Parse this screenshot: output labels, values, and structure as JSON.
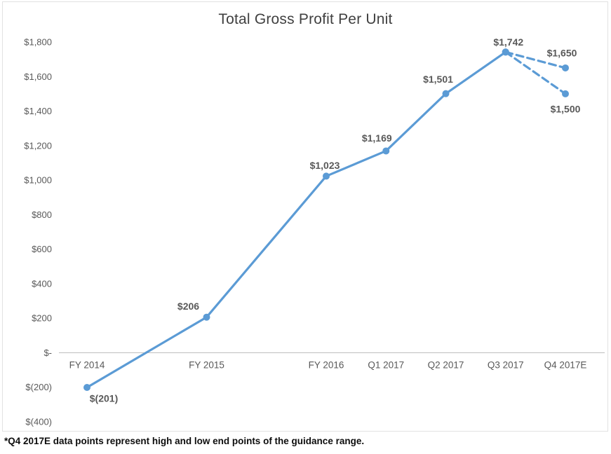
{
  "chart_data": {
    "type": "line",
    "title": "Total Gross Profit Per Unit",
    "categories": [
      "FY 2014",
      "FY 2015",
      "FY 2016",
      "Q1 2017",
      "Q2 2017",
      "Q3 2017",
      "Q4 2017E"
    ],
    "category_x_units": [
      0,
      2,
      4,
      5,
      6,
      7,
      8
    ],
    "ylim": [
      -400,
      1800
    ],
    "y_ticks": [
      {
        "value": 1800,
        "label": "$1,800"
      },
      {
        "value": 1600,
        "label": "$1,600"
      },
      {
        "value": 1400,
        "label": "$1,400"
      },
      {
        "value": 1200,
        "label": "$1,200"
      },
      {
        "value": 1000,
        "label": "$1,000"
      },
      {
        "value": 800,
        "label": "$800"
      },
      {
        "value": 600,
        "label": "$600"
      },
      {
        "value": 400,
        "label": "$400"
      },
      {
        "value": 200,
        "label": "$200"
      },
      {
        "value": 0,
        "label": "$-"
      },
      {
        "value": -200,
        "label": "$(200)"
      },
      {
        "value": -400,
        "label": "$(400)"
      }
    ],
    "series": [
      {
        "name": "actual",
        "line_style": "solid",
        "points": [
          {
            "x_unit": 0,
            "category": "FY 2014",
            "value": -201,
            "label": "$(201)",
            "label_dx": 24,
            "label_dy": 16
          },
          {
            "x_unit": 2,
            "category": "FY 2015",
            "value": 206,
            "label": "$206",
            "label_dx": -26,
            "label_dy": -15
          },
          {
            "x_unit": 4,
            "category": "FY 2016",
            "value": 1023,
            "label": "$1,023",
            "label_dx": -2,
            "label_dy": -15
          },
          {
            "x_unit": 5,
            "category": "Q1 2017",
            "value": 1169,
            "label": "$1,169",
            "label_dx": -13,
            "label_dy": -18
          },
          {
            "x_unit": 6,
            "category": "Q2 2017",
            "value": 1501,
            "label": "$1,501",
            "label_dx": -11,
            "label_dy": -20
          },
          {
            "x_unit": 7,
            "category": "Q3 2017",
            "value": 1742,
            "label": "$1,742",
            "label_dx": 4,
            "label_dy": -14
          }
        ]
      },
      {
        "name": "guidance-high",
        "line_style": "dashed",
        "points": [
          {
            "x_unit": 7,
            "category": "Q3 2017",
            "value": 1742,
            "label": null
          },
          {
            "x_unit": 8,
            "category": "Q4 2017E",
            "value": 1650,
            "label": "$1,650",
            "label_dx": -5,
            "label_dy": -21
          }
        ]
      },
      {
        "name": "guidance-low",
        "line_style": "dashed",
        "points": [
          {
            "x_unit": 7,
            "category": "Q3 2017",
            "value": 1742,
            "label": null
          },
          {
            "x_unit": 8,
            "category": "Q4 2017E",
            "value": 1500,
            "label": "$1,500",
            "label_dx": 0,
            "label_dy": 22
          }
        ]
      }
    ],
    "colors": {
      "line": "#5B9BD5",
      "data_label": "#595959",
      "axis_label": "#595959",
      "axis_line": "#BFBFBF",
      "title": "#404040"
    },
    "grid": false,
    "legend": "none"
  },
  "footnote": "*Q4 2017E data points represent high and low end points of the guidance range."
}
